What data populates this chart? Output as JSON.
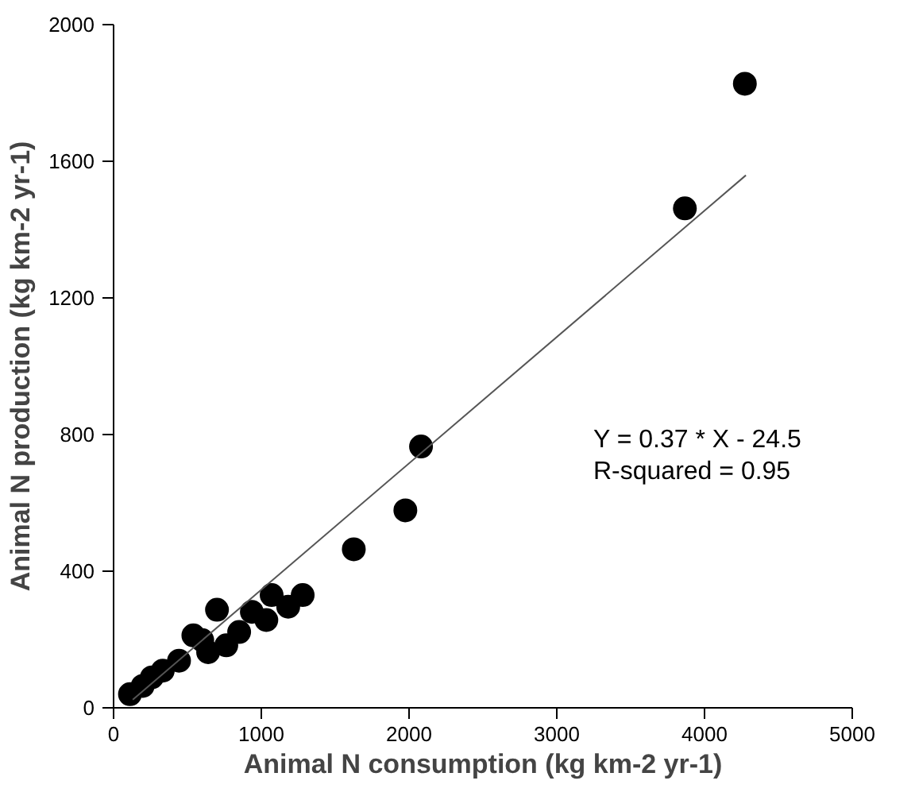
{
  "chart_data": {
    "type": "scatter",
    "xlabel": "Animal N consumption (kg km-2 yr-1)",
    "ylabel": "Animal N production (kg km-2 yr-1)",
    "xlim": [
      0,
      5000
    ],
    "ylim": [
      0,
      2000
    ],
    "xticks": [
      0,
      1000,
      2000,
      3000,
      4000,
      5000
    ],
    "yticks": [
      0,
      400,
      800,
      1200,
      1600,
      2000
    ],
    "grid": false,
    "series": [
      {
        "marker": "circle",
        "color": "#000000",
        "x": [
          111,
          197,
          259,
          333,
          443,
          540,
          600,
          640,
          700,
          763,
          850,
          936,
          1034,
          1070,
          1182,
          1280,
          1626,
          1930,
          1975,
          2081,
          3867,
          4273
        ],
        "values": [
          40,
          64,
          89,
          109,
          138,
          212,
          198,
          163,
          287,
          183,
          222,
          281,
          257,
          330,
          296,
          330,
          464,
          null,
          578,
          765,
          1462,
          1827
        ]
      },
      {
        "type": "line",
        "color": "#555555",
        "x": [
          130,
          4280
        ],
        "values": [
          24,
          1559
        ]
      }
    ],
    "annotations": [
      "Y = 0.37 * X - 24.5",
      "R-squared = 0.95"
    ]
  }
}
